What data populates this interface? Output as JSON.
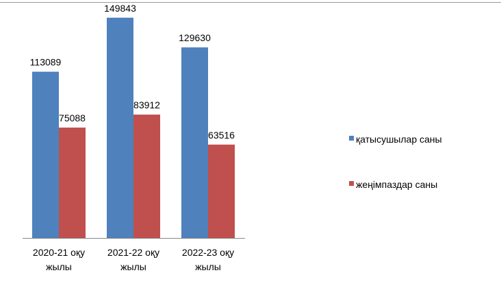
{
  "chart_data": {
    "type": "bar",
    "categories": [
      [
        "2020-21 оқу",
        "жылы"
      ],
      [
        "2021-22 оқу",
        "жылы"
      ],
      [
        "2022-23  оқу",
        "жылы"
      ]
    ],
    "series": [
      {
        "name": "қатысушылар саны",
        "values": [
          113089,
          149843,
          129630
        ],
        "color": "#4f81bd"
      },
      {
        "name": "жеңімпаздар саны",
        "values": [
          75088,
          83912,
          63516
        ],
        "color": "#c0504d"
      }
    ],
    "ylim": [
      0,
      160000
    ],
    "grid": false,
    "legend": "right",
    "data_labels": true
  }
}
